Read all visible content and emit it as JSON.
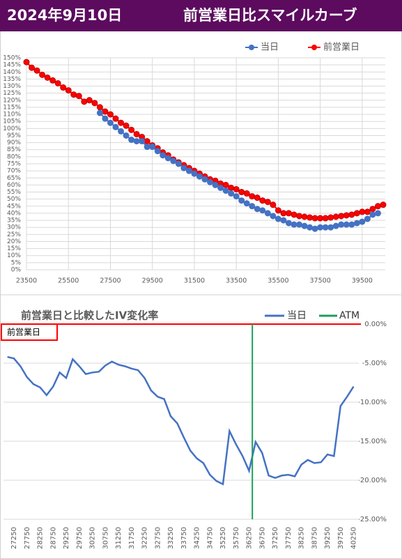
{
  "header": {
    "date": "2024年9月10日",
    "title": "前営業日比スマイルカーブ"
  },
  "chart_data": [
    {
      "type": "line",
      "markers": true,
      "grid": true,
      "x": [
        23500,
        23750,
        24000,
        24250,
        24500,
        24750,
        25000,
        25250,
        25500,
        25750,
        26000,
        26250,
        26500,
        26750,
        27000,
        27250,
        27500,
        27750,
        28000,
        28250,
        28500,
        28750,
        29000,
        29250,
        29500,
        29750,
        30000,
        30250,
        30500,
        30750,
        31000,
        31250,
        31500,
        31750,
        32000,
        32250,
        32500,
        32750,
        33000,
        33250,
        33500,
        33750,
        34000,
        34250,
        34500,
        34750,
        35000,
        35250,
        35500,
        35750,
        36000,
        36250,
        36500,
        36750,
        37000,
        37250,
        37500,
        37750,
        38000,
        38250,
        38500,
        38750,
        39000,
        39250,
        39500,
        39750,
        40000,
        40250,
        40500
      ],
      "series": [
        {
          "name": "前営業日",
          "color": "#ff0000",
          "values": [
            147,
            143,
            141,
            138,
            136,
            134,
            132,
            129,
            127,
            124,
            123,
            119,
            120,
            118,
            115,
            112,
            110,
            107,
            104,
            102,
            99,
            96,
            94,
            91,
            88,
            86,
            83,
            81,
            78,
            76,
            74,
            72,
            70,
            68,
            66,
            64,
            63,
            61,
            60,
            58,
            57,
            55,
            54,
            52,
            51,
            49,
            48,
            46,
            42,
            40,
            40,
            39,
            38,
            37.5,
            37,
            36.5,
            36.5,
            36.5,
            37,
            37.5,
            38,
            38.5,
            39,
            40,
            41,
            41,
            43,
            45,
            46
          ]
        },
        {
          "name": "当日",
          "color": "#4472c4",
          "values": [
            null,
            null,
            null,
            null,
            null,
            null,
            null,
            null,
            null,
            null,
            null,
            null,
            null,
            null,
            111,
            107,
            104,
            101,
            98,
            95,
            92,
            91,
            91,
            87,
            87,
            84,
            81,
            79,
            77,
            75,
            72,
            70,
            68,
            66,
            64,
            62,
            60,
            58,
            56,
            54,
            52,
            49,
            47,
            45,
            43,
            42,
            40,
            38,
            36,
            35,
            33,
            32,
            32,
            31,
            30,
            29,
            30,
            30,
            30,
            31,
            32,
            32,
            32,
            33,
            34,
            36,
            39,
            40,
            null
          ]
        }
      ],
      "legend_order": [
        1,
        0
      ],
      "xlim": [
        23500,
        40600
      ],
      "xticks": [
        23500,
        25500,
        27500,
        29500,
        31500,
        33500,
        35500,
        37500,
        39500
      ],
      "ylim": [
        0,
        150
      ],
      "yticks": [
        {
          "value": 0,
          "label": "0%"
        },
        {
          "value": 5,
          "label": "5%"
        },
        {
          "value": 10,
          "label": "10%"
        },
        {
          "value": 15,
          "label": "15%"
        },
        {
          "value": 20,
          "label": "20%"
        },
        {
          "value": 25,
          "label": "25%"
        },
        {
          "value": 30,
          "label": "30%"
        },
        {
          "value": 35,
          "label": "35%"
        },
        {
          "value": 40,
          "label": "40%"
        },
        {
          "value": 45,
          "label": "45%"
        },
        {
          "value": 50,
          "label": "50%"
        },
        {
          "value": 55,
          "label": "55%"
        },
        {
          "value": 60,
          "label": "60%"
        },
        {
          "value": 65,
          "label": "65%"
        },
        {
          "value": 70,
          "label": "70%"
        },
        {
          "value": 75,
          "label": "75%"
        },
        {
          "value": 80,
          "label": "80%"
        },
        {
          "value": 85,
          "label": "85%"
        },
        {
          "value": 90,
          "label": "90%"
        },
        {
          "value": 95,
          "label": "95%"
        },
        {
          "value": 100,
          "label": "100%"
        },
        {
          "value": 105,
          "label": "105%"
        },
        {
          "value": 110,
          "label": "110%"
        },
        {
          "value": 115,
          "label": "115%"
        },
        {
          "value": 120,
          "label": "120%"
        },
        {
          "value": 125,
          "label": "125%"
        },
        {
          "value": 130,
          "label": "130%"
        },
        {
          "value": 135,
          "label": "135%"
        },
        {
          "value": 140,
          "label": "140%"
        },
        {
          "value": 145,
          "label": "145%"
        },
        {
          "value": 150,
          "label": "150%"
        }
      ]
    },
    {
      "type": "line",
      "markers": false,
      "grid": true,
      "title": "前営業日と比較したIV変化率",
      "x": [
        27000,
        27250,
        27500,
        27750,
        28000,
        28250,
        28500,
        28750,
        29000,
        29250,
        29500,
        29750,
        30000,
        30250,
        30500,
        30750,
        31000,
        31250,
        31500,
        31750,
        32000,
        32250,
        32500,
        32750,
        33000,
        33250,
        33500,
        33750,
        34000,
        34250,
        34500,
        34750,
        35000,
        35250,
        35500,
        35750,
        36000,
        36250,
        36500,
        36750,
        37000,
        37250,
        37500,
        37750,
        38000,
        38250,
        38500,
        38750,
        39000,
        39250,
        39500,
        39750,
        40000,
        40250
      ],
      "series": [
        {
          "name": "当日",
          "color": "#4472c4",
          "values": [
            -4.2,
            -4.4,
            -5.4,
            -6.8,
            -7.7,
            -8.1,
            -9.1,
            -8.0,
            -6.2,
            -6.9,
            -4.5,
            -5.4,
            -6.4,
            -6.2,
            -6.1,
            -5.3,
            -4.8,
            -5.2,
            -5.4,
            -5.7,
            -5.9,
            -6.9,
            -8.5,
            -9.3,
            -9.6,
            -11.8,
            -12.7,
            -14.5,
            -16.2,
            -17.2,
            -17.8,
            -19.3,
            -20.1,
            -20.5,
            -13.7,
            -15.4,
            -16.9,
            -18.8,
            -15.1,
            -16.5,
            -19.4,
            -19.7,
            -19.4,
            -19.3,
            -19.5,
            -18.0,
            -17.4,
            -17.8,
            -17.7,
            -16.7,
            -16.9,
            -10.5,
            -9.3,
            -8.0
          ]
        }
      ],
      "vline": {
        "name": "ATM",
        "color": "#1aa05a",
        "x": 36375
      },
      "baseline": {
        "label": "前営業日",
        "color": "#ff0000",
        "value": 0
      },
      "xlim": [
        26850,
        40450
      ],
      "xticks": [
        27250,
        27750,
        28250,
        28750,
        29250,
        29750,
        30250,
        30750,
        31250,
        31750,
        32250,
        32750,
        33250,
        33750,
        34250,
        34750,
        35250,
        35750,
        36250,
        36750,
        37250,
        37750,
        38250,
        38750,
        39250,
        39750,
        40250
      ],
      "ylim": [
        -25,
        0
      ],
      "yticks": [
        {
          "value": 0,
          "label": "0.00%"
        },
        {
          "value": -5,
          "label": "-5.00%"
        },
        {
          "value": -10,
          "label": "-10.00%"
        },
        {
          "value": -15,
          "label": "-15.00%"
        },
        {
          "value": -20,
          "label": "-20.00%"
        },
        {
          "value": -25,
          "label": "-25.00%"
        }
      ]
    }
  ]
}
